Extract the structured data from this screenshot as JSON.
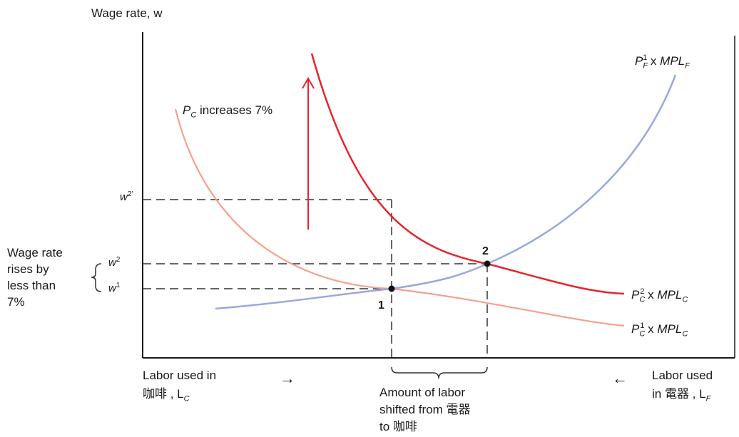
{
  "axes": {
    "y_label": "Wage rate, w",
    "x_left_label_line1": "Labor used in",
    "x_left_label_line2": "咖啡 , L",
    "x_left_label_sub": "C",
    "x_right_label_line1": "Labor used",
    "x_right_label_line2": "in 電器 , L",
    "x_right_label_sub": "F",
    "arrow_right": "→",
    "arrow_left": "←"
  },
  "wage_ticks": {
    "w2prime": "w",
    "w2prime_sup": "2′",
    "w2": "w",
    "w2_sup": "2",
    "w1": "w",
    "w1_sup": "1"
  },
  "side_note": {
    "lines": [
      "Wage rate",
      "rises by",
      "less than",
      "7%"
    ]
  },
  "curves": {
    "food_mpl": {
      "p": "P",
      "p_sub": "F",
      "p_sup": "1",
      "mid": " x ",
      "mpl": "MPL",
      "mpl_sub": "F",
      "color": "#98a8e0"
    },
    "coffee_mpl_2": {
      "p": "P",
      "p_sub": "C",
      "p_sup": "2",
      "mid": " x ",
      "mpl": "MPL",
      "mpl_sub": "C",
      "color": "#e8242c"
    },
    "coffee_mpl_1": {
      "p": "P",
      "p_sub": "C",
      "p_sup": "1",
      "mid": " x ",
      "mpl": "MPL",
      "mpl_sub": "C",
      "color": "#f4a28c"
    }
  },
  "annotation": {
    "price_increase_p": "P",
    "price_increase_sub": "C",
    "price_increase_text": " increases 7%"
  },
  "points": {
    "p1": "1",
    "p2": "2"
  },
  "brace_label": {
    "lines": [
      "Amount of labor",
      "shifted from 電器",
      "to  咖啡"
    ]
  },
  "colors": {
    "axis": "#1a1a1a",
    "arrow": "#e8242c",
    "dash": "#333333"
  }
}
